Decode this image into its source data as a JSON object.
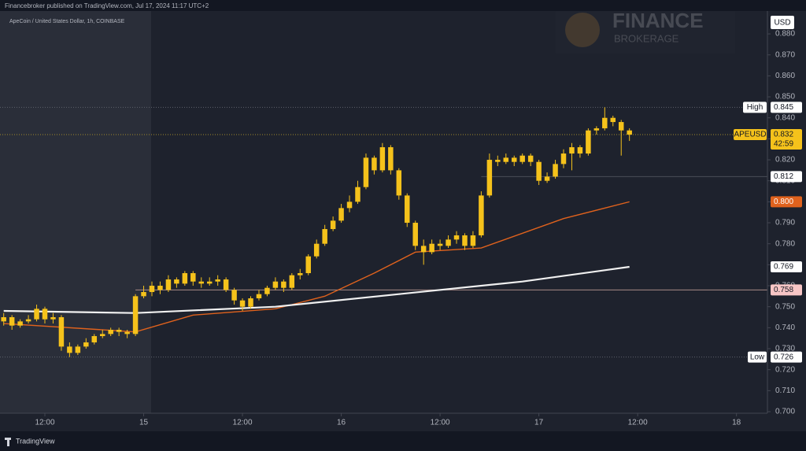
{
  "header": {
    "publisher": "Financebroker published on TradingView.com, Jul 17, 2024 11:17 UTC+2",
    "symbol": "ApeCoin / United States Dollar, 1h, COINBASE",
    "watermark": "FINANCE",
    "watermark_sub": "BROKERAGE",
    "footer": "TradingView"
  },
  "chart_data": {
    "type": "candlestick",
    "currency": "USD",
    "color": "#f5c21b",
    "x": [
      7,
      8,
      9,
      10,
      11,
      12,
      13,
      14,
      15,
      16,
      17,
      18,
      19,
      20,
      21,
      22,
      23,
      24,
      25,
      26,
      27,
      28,
      29,
      30,
      31,
      32,
      33,
      34,
      35,
      36,
      37,
      38,
      39,
      40,
      41,
      42,
      43,
      44,
      45,
      46,
      47,
      48,
      49,
      50,
      51,
      52,
      53,
      54,
      55,
      56,
      57,
      58,
      59,
      60,
      61,
      62,
      63,
      64,
      65,
      66,
      67,
      68,
      69,
      70,
      71,
      72,
      73,
      74,
      75,
      76,
      77,
      78,
      79,
      80,
      81,
      82,
      83
    ],
    "open": [
      0.743,
      0.745,
      0.741,
      0.743,
      0.744,
      0.749,
      0.744,
      0.745,
      0.731,
      0.728,
      0.731,
      0.733,
      0.736,
      0.737,
      0.739,
      0.738,
      0.737,
      0.755,
      0.757,
      0.76,
      0.758,
      0.763,
      0.761,
      0.766,
      0.762,
      0.761,
      0.762,
      0.763,
      0.758,
      0.753,
      0.75,
      0.754,
      0.756,
      0.759,
      0.762,
      0.759,
      0.765,
      0.766,
      0.774,
      0.78,
      0.787,
      0.791,
      0.797,
      0.8,
      0.807,
      0.821,
      0.815,
      0.826,
      0.815,
      0.803,
      0.79,
      0.779,
      0.776,
      0.78,
      0.779,
      0.782,
      0.784,
      0.779,
      0.784,
      0.803,
      0.82,
      0.819,
      0.821,
      0.819,
      0.822,
      0.819,
      0.81,
      0.812,
      0.818,
      0.823,
      0.826,
      0.823,
      0.834,
      0.835,
      0.84,
      0.838,
      0.834
    ],
    "high": [
      0.747,
      0.746,
      0.744,
      0.746,
      0.751,
      0.75,
      0.747,
      0.746,
      0.733,
      0.732,
      0.735,
      0.737,
      0.739,
      0.74,
      0.74,
      0.739,
      0.756,
      0.76,
      0.762,
      0.762,
      0.765,
      0.764,
      0.767,
      0.767,
      0.764,
      0.764,
      0.765,
      0.764,
      0.759,
      0.754,
      0.755,
      0.758,
      0.76,
      0.764,
      0.763,
      0.766,
      0.768,
      0.775,
      0.782,
      0.789,
      0.793,
      0.799,
      0.803,
      0.81,
      0.823,
      0.822,
      0.828,
      0.827,
      0.816,
      0.804,
      0.791,
      0.782,
      0.782,
      0.782,
      0.784,
      0.786,
      0.785,
      0.786,
      0.805,
      0.823,
      0.822,
      0.823,
      0.822,
      0.823,
      0.823,
      0.82,
      0.814,
      0.82,
      0.825,
      0.828,
      0.827,
      0.835,
      0.836,
      0.845,
      0.841,
      0.839,
      0.835
    ],
    "low": [
      0.741,
      0.739,
      0.74,
      0.742,
      0.743,
      0.742,
      0.742,
      0.729,
      0.726,
      0.727,
      0.73,
      0.732,
      0.735,
      0.736,
      0.736,
      0.735,
      0.736,
      0.754,
      0.755,
      0.756,
      0.757,
      0.759,
      0.76,
      0.76,
      0.759,
      0.76,
      0.76,
      0.757,
      0.751,
      0.748,
      0.749,
      0.753,
      0.755,
      0.758,
      0.757,
      0.758,
      0.763,
      0.765,
      0.773,
      0.779,
      0.786,
      0.79,
      0.795,
      0.799,
      0.806,
      0.813,
      0.814,
      0.813,
      0.801,
      0.788,
      0.777,
      0.77,
      0.775,
      0.777,
      0.778,
      0.78,
      0.777,
      0.778,
      0.783,
      0.802,
      0.817,
      0.818,
      0.817,
      0.818,
      0.817,
      0.808,
      0.809,
      0.811,
      0.816,
      0.815,
      0.821,
      0.822,
      0.832,
      0.834,
      0.836,
      0.822,
      0.829
    ],
    "close": [
      0.745,
      0.741,
      0.743,
      0.744,
      0.749,
      0.744,
      0.745,
      0.731,
      0.728,
      0.731,
      0.733,
      0.736,
      0.737,
      0.739,
      0.738,
      0.737,
      0.755,
      0.757,
      0.76,
      0.758,
      0.763,
      0.761,
      0.766,
      0.762,
      0.761,
      0.762,
      0.763,
      0.758,
      0.753,
      0.75,
      0.754,
      0.756,
      0.759,
      0.762,
      0.759,
      0.765,
      0.766,
      0.774,
      0.78,
      0.787,
      0.791,
      0.797,
      0.8,
      0.807,
      0.821,
      0.815,
      0.826,
      0.815,
      0.803,
      0.79,
      0.779,
      0.776,
      0.78,
      0.779,
      0.782,
      0.784,
      0.779,
      0.784,
      0.803,
      0.82,
      0.819,
      0.821,
      0.819,
      0.822,
      0.819,
      0.81,
      0.812,
      0.818,
      0.823,
      0.826,
      0.823,
      0.834,
      0.835,
      0.84,
      0.838,
      0.834,
      0.832
    ],
    "lines": [
      {
        "color": "#e0621d",
        "x": [
          7,
          23,
          30,
          40,
          46,
          52,
          57,
          65,
          75,
          83
        ],
        "values": [
          0.742,
          0.738,
          0.746,
          0.749,
          0.755,
          0.766,
          0.776,
          0.778,
          0.792,
          0.8
        ]
      },
      {
        "color": "#f0f0f0",
        "x": [
          7,
          23,
          40,
          55,
          70,
          83
        ],
        "values": [
          0.748,
          0.747,
          0.75,
          0.756,
          0.762,
          0.769
        ]
      }
    ],
    "markers": [
      {
        "name": "High",
        "value": 0.845,
        "label": "0.845",
        "color": "#ffffff",
        "text_color": "#131722",
        "line": "dotted",
        "line_color": "#5d606b"
      },
      {
        "name": "APEUSD",
        "value": 0.832,
        "label": "0.832",
        "countdown": "42:59",
        "color": "#f5c21b",
        "text_color": "#131722",
        "line": "dotted",
        "line_color": "#a08a2a"
      },
      {
        "value": 0.812,
        "label": "0.812",
        "color": "#ffffff",
        "text_color": "#131722",
        "line": "solid",
        "line_color": "#4a4e58",
        "start": 65
      },
      {
        "value": 0.8,
        "label": "0.800",
        "color": "#e0621d",
        "text_color": "#ffffff"
      },
      {
        "value": 0.769,
        "label": "0.769",
        "color": "#ffffff",
        "text_color": "#131722"
      },
      {
        "value": 0.758,
        "label": "0.758",
        "color": "#f7c5c5",
        "text_color": "#131722",
        "line": "solid",
        "line_color": "#a88a86",
        "start": 23
      },
      {
        "name": "Low",
        "value": 0.726,
        "label": "0.726",
        "color": "#ffffff",
        "text_color": "#131722",
        "line": "dotted",
        "line_color": "#5d606b"
      }
    ],
    "shade": [
      6.55,
      24.9
    ],
    "xlim": [
      6.55,
      99.76
    ],
    "ylim": [
      0.69925,
      0.8909
    ],
    "xticks": [
      {
        "value": 12,
        "label": "12:00"
      },
      {
        "value": 24,
        "label": "15"
      },
      {
        "value": 36,
        "label": "12:00"
      },
      {
        "value": 48,
        "label": "16"
      },
      {
        "value": 60,
        "label": "12:00"
      },
      {
        "value": 72,
        "label": "17"
      },
      {
        "value": 84,
        "label": "12:00"
      },
      {
        "value": 96,
        "label": "18"
      }
    ],
    "yticks": [
      {
        "value": 0.7,
        "label": "0.700"
      },
      {
        "value": 0.71,
        "label": "0.710"
      },
      {
        "value": 0.72,
        "label": "0.720"
      },
      {
        "value": 0.73,
        "label": "0.730"
      },
      {
        "value": 0.74,
        "label": "0.740"
      },
      {
        "value": 0.75,
        "label": "0.750"
      },
      {
        "value": 0.76,
        "label": "0.760"
      },
      {
        "value": 0.77,
        "label": "0.770"
      },
      {
        "value": 0.78,
        "label": "0.780"
      },
      {
        "value": 0.79,
        "label": "0.790"
      },
      {
        "value": 0.8,
        "label": "0.800"
      },
      {
        "value": 0.81,
        "label": "0.810"
      },
      {
        "value": 0.82,
        "label": "0.820"
      },
      {
        "value": 0.83,
        "label": "0.830"
      },
      {
        "value": 0.84,
        "label": "0.840"
      },
      {
        "value": 0.85,
        "label": "0.850"
      },
      {
        "value": 0.86,
        "label": "0.860"
      },
      {
        "value": 0.87,
        "label": "0.870"
      },
      {
        "value": 0.88,
        "label": "0.880"
      }
    ]
  }
}
